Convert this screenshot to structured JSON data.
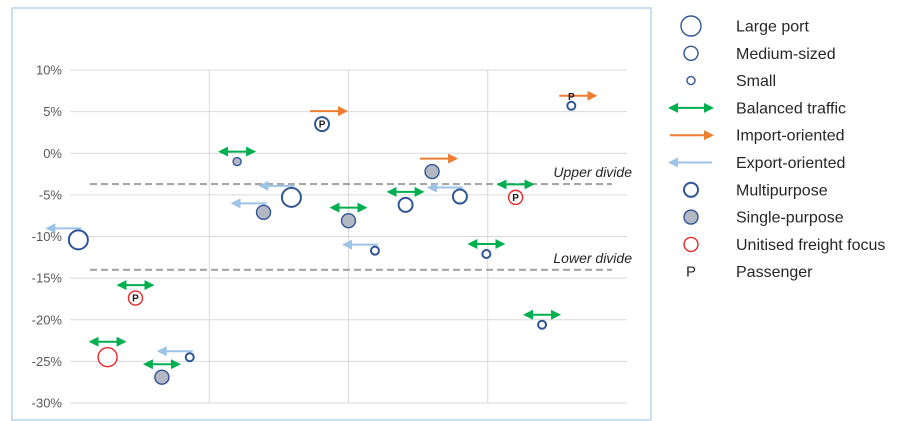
{
  "chart_data": {
    "type": "scatter",
    "title": "",
    "xlabel": "",
    "ylabel": "",
    "ylim": [
      -30,
      10
    ],
    "xlim": [
      0,
      4
    ],
    "y_ticks": [
      "10%",
      "5%",
      "0%",
      "-5%",
      "-10%",
      "-15%",
      "-20%",
      "-25%",
      "-30%"
    ],
    "y_tick_values": [
      10,
      5,
      0,
      -5,
      -10,
      -15,
      -20,
      -25,
      -30
    ],
    "x_gridlines": [
      1,
      2,
      3
    ],
    "grid": "vertical-and-horizontal",
    "divides": [
      {
        "label": "Upper divide",
        "y": -3.7
      },
      {
        "label": "Lower divide",
        "y": -14.0
      }
    ],
    "colors": {
      "port_outline": "#2F5597",
      "single_purpose_fill": "#B4B8C4",
      "unitised_outline": "#E8282B",
      "balanced": "#00B050",
      "import": "#ED7D31",
      "export": "#9DC3E6",
      "divide": "#A6A6A6",
      "grid": "#D9D9D9"
    },
    "points": [
      {
        "x": 0.06,
        "y": -10.4,
        "size": "large",
        "type": "multipurpose",
        "passenger": false,
        "traffic": "export"
      },
      {
        "x": 0.47,
        "y": -17.4,
        "size": "medium",
        "type": "unitised",
        "passenger": true,
        "traffic": "balanced"
      },
      {
        "x": 0.27,
        "y": -24.5,
        "size": "large",
        "type": "unitised",
        "passenger": false,
        "traffic": "balanced"
      },
      {
        "x": 0.66,
        "y": -26.9,
        "size": "medium",
        "type": "single-purpose",
        "passenger": false,
        "traffic": "balanced"
      },
      {
        "x": 0.86,
        "y": -24.5,
        "size": "small",
        "type": "multipurpose",
        "passenger": false,
        "traffic": "export"
      },
      {
        "x": 1.2,
        "y": -1.0,
        "size": "small",
        "type": "single-purpose",
        "passenger": false,
        "traffic": "balanced"
      },
      {
        "x": 1.39,
        "y": -7.1,
        "size": "medium",
        "type": "single-purpose",
        "passenger": false,
        "traffic": "export"
      },
      {
        "x": 1.59,
        "y": -5.3,
        "size": "large",
        "type": "multipurpose",
        "passenger": false,
        "traffic": "export"
      },
      {
        "x": 1.81,
        "y": 3.5,
        "size": "medium",
        "type": "multipurpose",
        "passenger": true,
        "traffic": "import"
      },
      {
        "x": 2.0,
        "y": -8.1,
        "size": "medium",
        "type": "single-purpose",
        "passenger": false,
        "traffic": "balanced"
      },
      {
        "x": 2.19,
        "y": -11.7,
        "size": "small",
        "type": "multipurpose",
        "passenger": false,
        "traffic": "export"
      },
      {
        "x": 2.41,
        "y": -6.2,
        "size": "medium",
        "type": "multipurpose",
        "passenger": false,
        "traffic": "balanced"
      },
      {
        "x": 2.6,
        "y": -2.2,
        "size": "medium",
        "type": "single-purpose",
        "passenger": false,
        "traffic": "import"
      },
      {
        "x": 2.8,
        "y": -5.2,
        "size": "medium",
        "type": "multipurpose",
        "passenger": false,
        "traffic": "export"
      },
      {
        "x": 2.99,
        "y": -12.1,
        "size": "small",
        "type": "multipurpose",
        "passenger": false,
        "traffic": "balanced"
      },
      {
        "x": 3.2,
        "y": -5.3,
        "size": "medium",
        "type": "unitised",
        "passenger": true,
        "traffic": "balanced"
      },
      {
        "x": 3.39,
        "y": -20.6,
        "size": "small",
        "type": "multipurpose",
        "passenger": false,
        "traffic": "balanced"
      },
      {
        "x": 3.6,
        "y": 5.7,
        "size": "small",
        "type": "multipurpose",
        "passenger": true,
        "traffic": "import"
      }
    ],
    "legend": {
      "placement": "right",
      "items": [
        {
          "key": "large",
          "label": "Large port"
        },
        {
          "key": "medium",
          "label": "Medium-sized"
        },
        {
          "key": "small",
          "label": "Small"
        },
        {
          "key": "balanced",
          "label": "Balanced traffic"
        },
        {
          "key": "import",
          "label": "Import-oriented"
        },
        {
          "key": "export",
          "label": "Export-oriented"
        },
        {
          "key": "multipurpose",
          "label": "Multipurpose"
        },
        {
          "key": "single-purpose",
          "label": "Single-purpose"
        },
        {
          "key": "unitised",
          "label": "Unitised freight focus"
        },
        {
          "key": "passenger",
          "label": "Passenger",
          "symbol": "P"
        }
      ]
    }
  }
}
